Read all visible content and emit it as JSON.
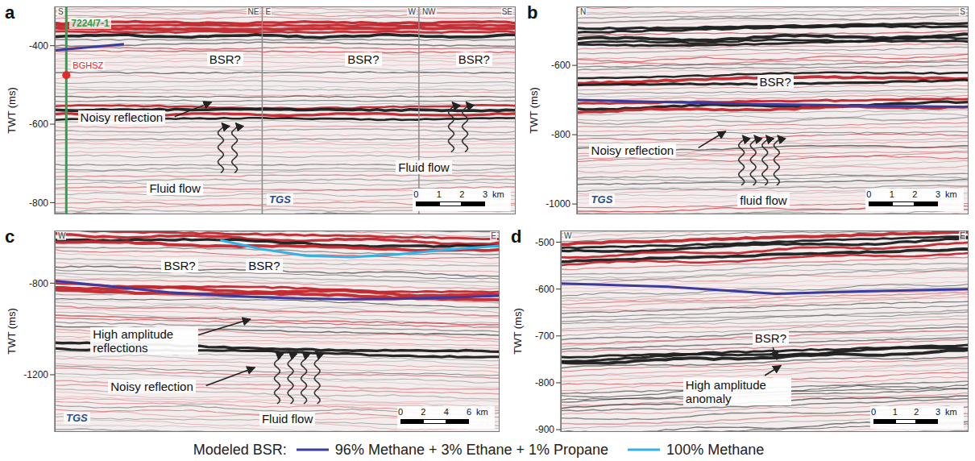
{
  "chart_data": [
    {
      "panel": "a",
      "type": "line",
      "ylabel": "TWT (ms)",
      "xlim": [
        0,
        20
      ],
      "ylim": [
        -830,
        -300
      ],
      "yticks": [
        -400,
        -600,
        -800
      ],
      "tick_labels": "y",
      "sections": [
        {
          "from": 0,
          "to": 9,
          "directions": [
            "S",
            "NE"
          ]
        },
        {
          "from": 9,
          "to": 15.8,
          "directions": [
            "E",
            "W"
          ]
        },
        {
          "from": 15.8,
          "to": 20,
          "directions": [
            "NW",
            "SE"
          ]
        }
      ],
      "well": {
        "name": "7224/7-1",
        "x": 0.5,
        "color": "#2ca04c",
        "depth_mark": {
          "label": "BGHSZ",
          "y": -475,
          "color": "#e8262a"
        }
      },
      "series": [
        {
          "name": "96% Methane + 3% Ethane + 1% Propane",
          "color": "#3b3a9e",
          "x": [
            0,
            1.5,
            3
          ],
          "values": [
            -412,
            -404,
            -396
          ]
        }
      ],
      "annotations": [
        "BSR?",
        "BSR?",
        "BSR?",
        "Noisy reflection",
        "Fluid flow",
        "Fluid flow"
      ],
      "watermark": "TGS",
      "scale_bar": {
        "ticks": [
          0,
          1,
          2,
          3
        ],
        "unit": "km"
      }
    },
    {
      "panel": "b",
      "type": "line",
      "ylabel": "TWT (ms)",
      "xlim": [
        0,
        17
      ],
      "ylim": [
        -1030,
        -430
      ],
      "yticks": [
        -600,
        -800,
        -1000
      ],
      "tick_labels": "y",
      "sections": [
        {
          "from": 0,
          "to": 17,
          "directions": [
            "N",
            "S"
          ]
        }
      ],
      "series": [
        {
          "name": "96% Methane + 3% Ethane + 1% Propane",
          "color": "#3b3a9e",
          "x": [
            0,
            4,
            8,
            12,
            17
          ],
          "values": [
            -700,
            -706,
            -712,
            -716,
            -720
          ]
        }
      ],
      "annotations": [
        "BSR?",
        "Noisy reflection",
        "fluid flow"
      ],
      "watermark": "TGS",
      "scale_bar": {
        "ticks": [
          0,
          1,
          2,
          3
        ],
        "unit": "km"
      }
    },
    {
      "panel": "c",
      "type": "line",
      "ylabel": "TWT (ms)",
      "xlim": [
        0,
        39
      ],
      "ylim": [
        -1450,
        -570
      ],
      "yticks": [
        -800,
        -1200
      ],
      "tick_labels": "y",
      "sections": [
        {
          "from": 0,
          "to": 39,
          "directions": [
            "W",
            "E"
          ]
        }
      ],
      "series": [
        {
          "name": "96% Methane + 3% Ethane + 1% Propane",
          "color": "#3b3a9e",
          "x": [
            0,
            5,
            10,
            15,
            20,
            25,
            30,
            35,
            39
          ],
          "values": [
            -790,
            -815,
            -840,
            -855,
            -865,
            -870,
            -868,
            -862,
            -855
          ]
        },
        {
          "name": "100% Methane",
          "color": "#33b1e6",
          "x": [
            14.5,
            18,
            22,
            26,
            30,
            34,
            39
          ],
          "values": [
            -612,
            -650,
            -680,
            -686,
            -675,
            -655,
            -637
          ]
        }
      ],
      "annotations": [
        "BSR?",
        "BSR?",
        "High amplitude reflections",
        "Noisy reflection",
        "Fluid flow"
      ],
      "watermark": "TGS",
      "scale_bar": {
        "ticks": [
          0,
          2,
          4,
          6
        ],
        "unit": "km"
      }
    },
    {
      "panel": "d",
      "type": "line",
      "ylabel": "TWT (ms)",
      "xlim": [
        0,
        19
      ],
      "ylim": [
        -905,
        -475
      ],
      "yticks": [
        -500,
        -600,
        -700,
        -800,
        -900
      ],
      "tick_labels": "y",
      "sections": [
        {
          "from": 0,
          "to": 19,
          "directions": [
            "W",
            "E"
          ]
        }
      ],
      "series": [
        {
          "name": "96% Methane + 3% Ethane + 1% Propane",
          "color": "#3b3a9e",
          "x": [
            0,
            5,
            10,
            14,
            19
          ],
          "values": [
            -588,
            -595,
            -610,
            -605,
            -600
          ]
        }
      ],
      "annotations": [
        "BSR?",
        "High amplitude anomaly"
      ],
      "scale_bar": {
        "ticks": [
          0,
          1,
          2,
          3
        ],
        "unit": "km"
      }
    }
  ],
  "legend_title": "Modeled BSR:",
  "legend": "bottom"
}
